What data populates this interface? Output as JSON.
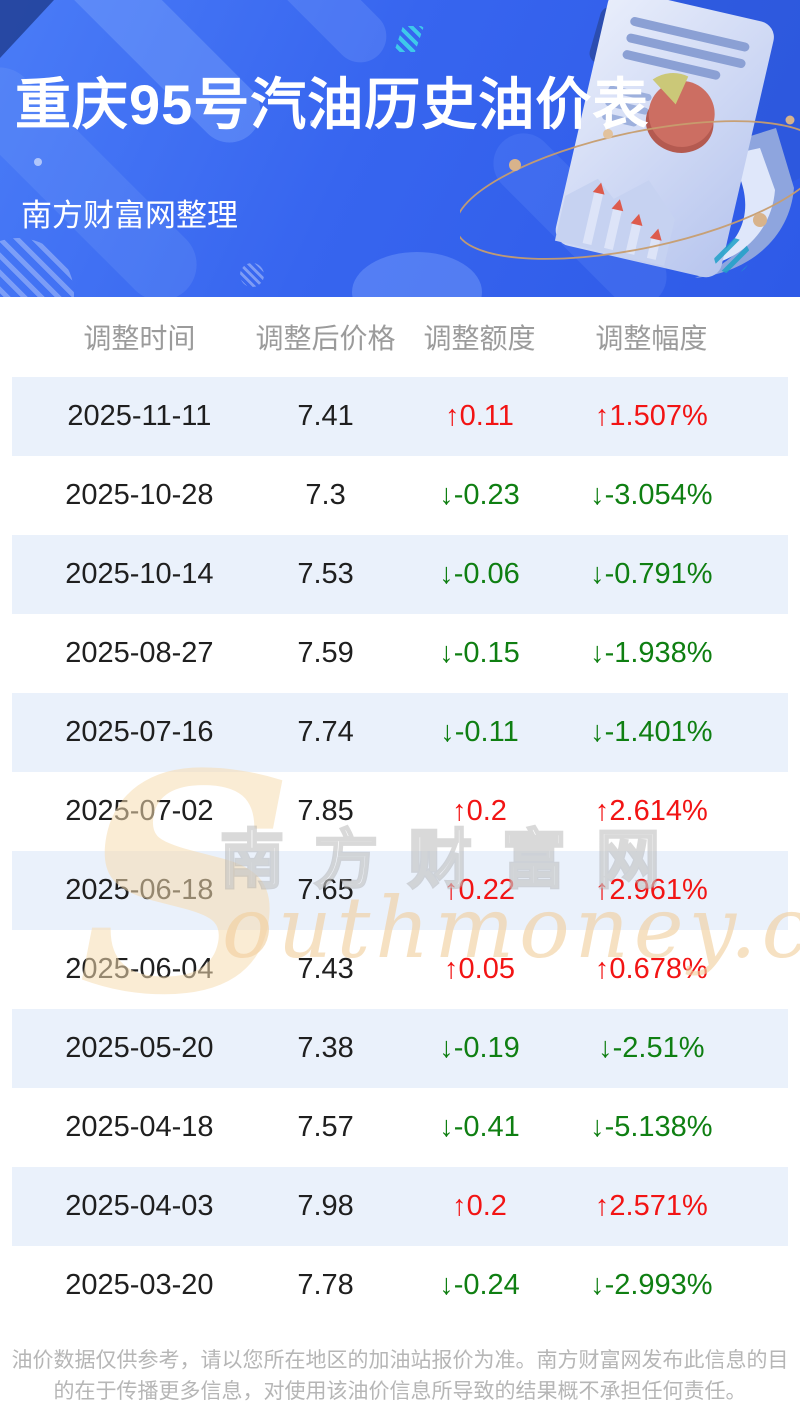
{
  "banner": {
    "title": "重庆95号汽油历史油价表",
    "subtitle": "南方财富网整理",
    "background_color": "#3a68ee"
  },
  "chart_data": {
    "type": "table",
    "title": "重庆95号汽油历史油价表",
    "columns": [
      "调整时间",
      "调整后价格",
      "调整额度",
      "调整幅度"
    ],
    "rows": [
      {
        "date": "2025-11-11",
        "price": "7.41",
        "change": "0.11",
        "change_pct": "1.507%",
        "direction": "up"
      },
      {
        "date": "2025-10-28",
        "price": "7.3",
        "change": "-0.23",
        "change_pct": "-3.054%",
        "direction": "down"
      },
      {
        "date": "2025-10-14",
        "price": "7.53",
        "change": "-0.06",
        "change_pct": "-0.791%",
        "direction": "down"
      },
      {
        "date": "2025-08-27",
        "price": "7.59",
        "change": "-0.15",
        "change_pct": "-1.938%",
        "direction": "down"
      },
      {
        "date": "2025-07-16",
        "price": "7.74",
        "change": "-0.11",
        "change_pct": "-1.401%",
        "direction": "down"
      },
      {
        "date": "2025-07-02",
        "price": "7.85",
        "change": "0.2",
        "change_pct": "2.614%",
        "direction": "up"
      },
      {
        "date": "2025-06-18",
        "price": "7.65",
        "change": "0.22",
        "change_pct": "2.961%",
        "direction": "up"
      },
      {
        "date": "2025-06-04",
        "price": "7.43",
        "change": "0.05",
        "change_pct": "0.678%",
        "direction": "up"
      },
      {
        "date": "2025-05-20",
        "price": "7.38",
        "change": "-0.19",
        "change_pct": "-2.51%",
        "direction": "down"
      },
      {
        "date": "2025-04-18",
        "price": "7.57",
        "change": "-0.41",
        "change_pct": "-5.138%",
        "direction": "down"
      },
      {
        "date": "2025-04-03",
        "price": "7.98",
        "change": "0.2",
        "change_pct": "2.571%",
        "direction": "up"
      },
      {
        "date": "2025-03-20",
        "price": "7.78",
        "change": "-0.24",
        "change_pct": "-2.993%",
        "direction": "down"
      }
    ],
    "up_arrow": "↑",
    "down_arrow": "↓",
    "up_color": "#f21414",
    "down_color": "#0f7f12",
    "alt_row_color": "#eaf1fb"
  },
  "watermark": {
    "initial": "S",
    "cn": "南方财富网",
    "en": "outhmoney.com"
  },
  "footer": {
    "disclaimer": "油价数据仅供参考，请以您所在地区的加油站报价为准。南方财富网发布此信息的目的在于传播更多信息，对使用该油价信息所导致的结果概不承担任何责任。"
  }
}
